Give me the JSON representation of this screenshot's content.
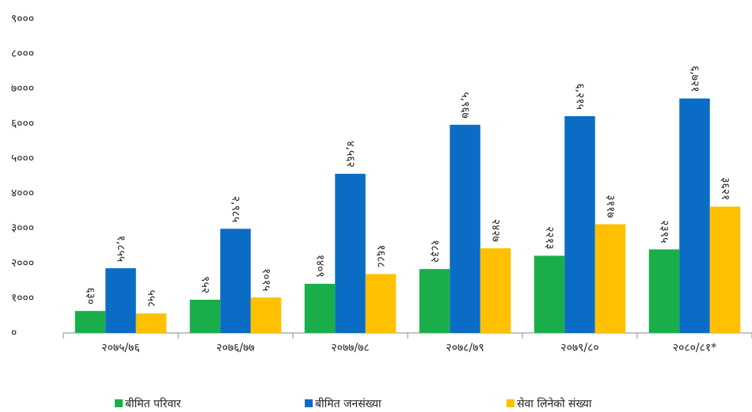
{
  "chart_data": {
    "type": "bar",
    "categories": [
      "२०७५/७६",
      "२०७६/७७",
      "२०७७/७८",
      "२०७८/७९",
      "२०७९/८०",
      "२०८०/८१*"
    ],
    "series": [
      {
        "name": "बीमित परिवार",
        "color": "#1aae4a",
        "values": [
          630,
          952,
          1409,
          1832,
          2213,
          2395
        ],
        "value_labels": [
          "६३०",
          "९५२",
          "१४०९",
          "१८३२",
          "२२१३",
          "२३९५"
        ]
      },
      {
        "name": "बीमित जनसंख्या",
        "color": "#0a6cc4",
        "values": [
          1855,
          2985,
          4562,
          5967,
          6215,
          6721
        ],
        "value_labels": [
          "१,८५५",
          "२,९८५",
          "४,५६२",
          "५,९६७",
          "६,२१५",
          "६,७२१"
        ]
      },
      {
        "name": "सेवा लिनेको संख्या",
        "color": "#ffc000",
        "values": [
          558,
          1015,
          1688,
          2427,
          3117,
          3621
        ],
        "value_labels": [
          "५५८",
          "१०१५",
          "१६८८",
          "२४२७",
          "३११७",
          "३६२१"
        ]
      }
    ],
    "ylim": [
      0,
      9000
    ],
    "yticks": [
      {
        "value": 0,
        "label": "०"
      },
      {
        "value": 1000,
        "label": "१०००"
      },
      {
        "value": 2000,
        "label": "२०००"
      },
      {
        "value": 3000,
        "label": "३०००"
      },
      {
        "value": 4000,
        "label": "४०००"
      },
      {
        "value": 5000,
        "label": "५०००"
      },
      {
        "value": 6000,
        "label": "६०००"
      },
      {
        "value": 7000,
        "label": "७०००"
      },
      {
        "value": 8000,
        "label": "८०००"
      },
      {
        "value": 9000,
        "label": "९०००"
      }
    ],
    "legend": "bottom"
  }
}
